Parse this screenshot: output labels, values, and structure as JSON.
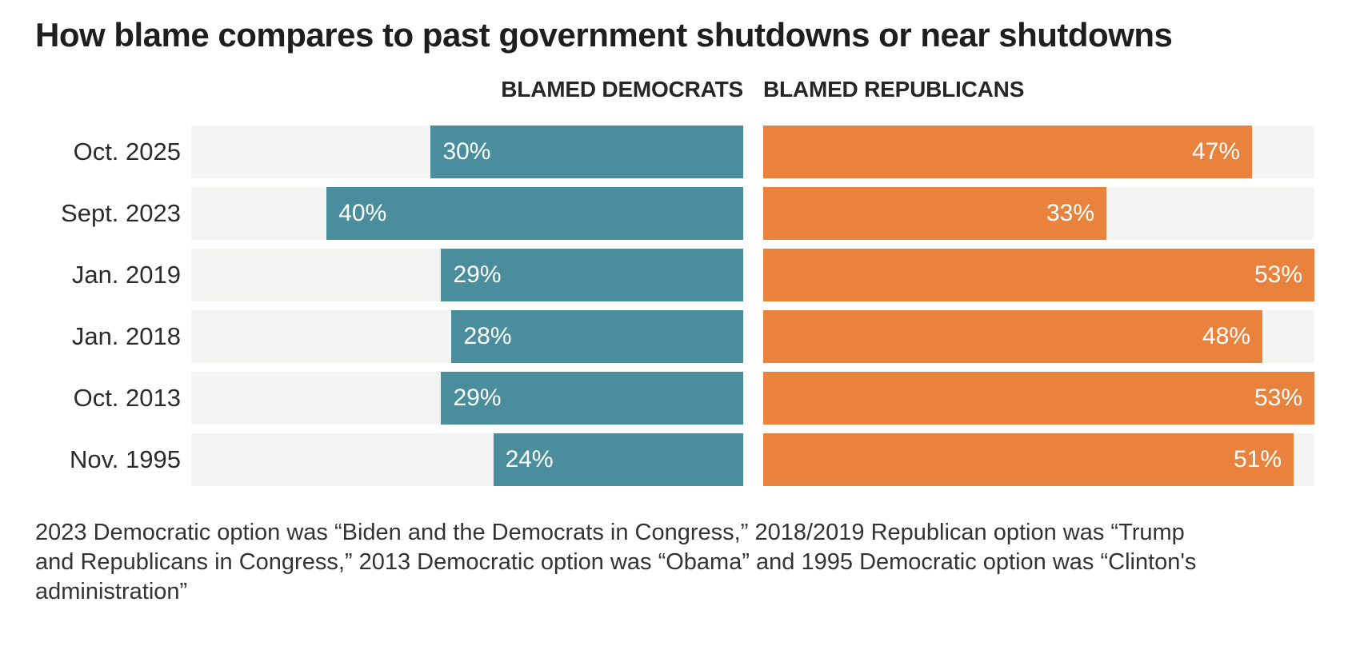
{
  "title": "How blame compares to past government shutdowns or near shutdowns",
  "chart_data": {
    "type": "bar",
    "variant": "horizontal-diverging-bullet",
    "categories": [
      "Oct. 2025",
      "Sept. 2023",
      "Jan. 2019",
      "Jan. 2018",
      "Oct. 2013",
      "Nov. 1995"
    ],
    "series": [
      {
        "name": "BLAMED DEMOCRATS",
        "values": [
          30,
          40,
          29,
          28,
          29,
          24
        ],
        "color": "#4a8e9d",
        "label_color": "#ffffff"
      },
      {
        "name": "BLAMED REPUBLICANS",
        "values": [
          47,
          33,
          53,
          48,
          53,
          51
        ],
        "color": "#e8823c",
        "label_color": "#ffffff"
      }
    ],
    "value_suffix": "%",
    "axis_max": 53,
    "track_color": "#f4f4f3",
    "grid": false,
    "legend_position": "column-headers-above-chart",
    "value_labels": "inside-bar-ends"
  },
  "footnote": "2023 Democratic option was “Biden and the Democrats in Congress,” 2018/2019 Republican option was “Trump and Republicans in Congress,” 2013 Democratic option was “Obama” and 1995 Democratic option was “Clinton's administration”"
}
